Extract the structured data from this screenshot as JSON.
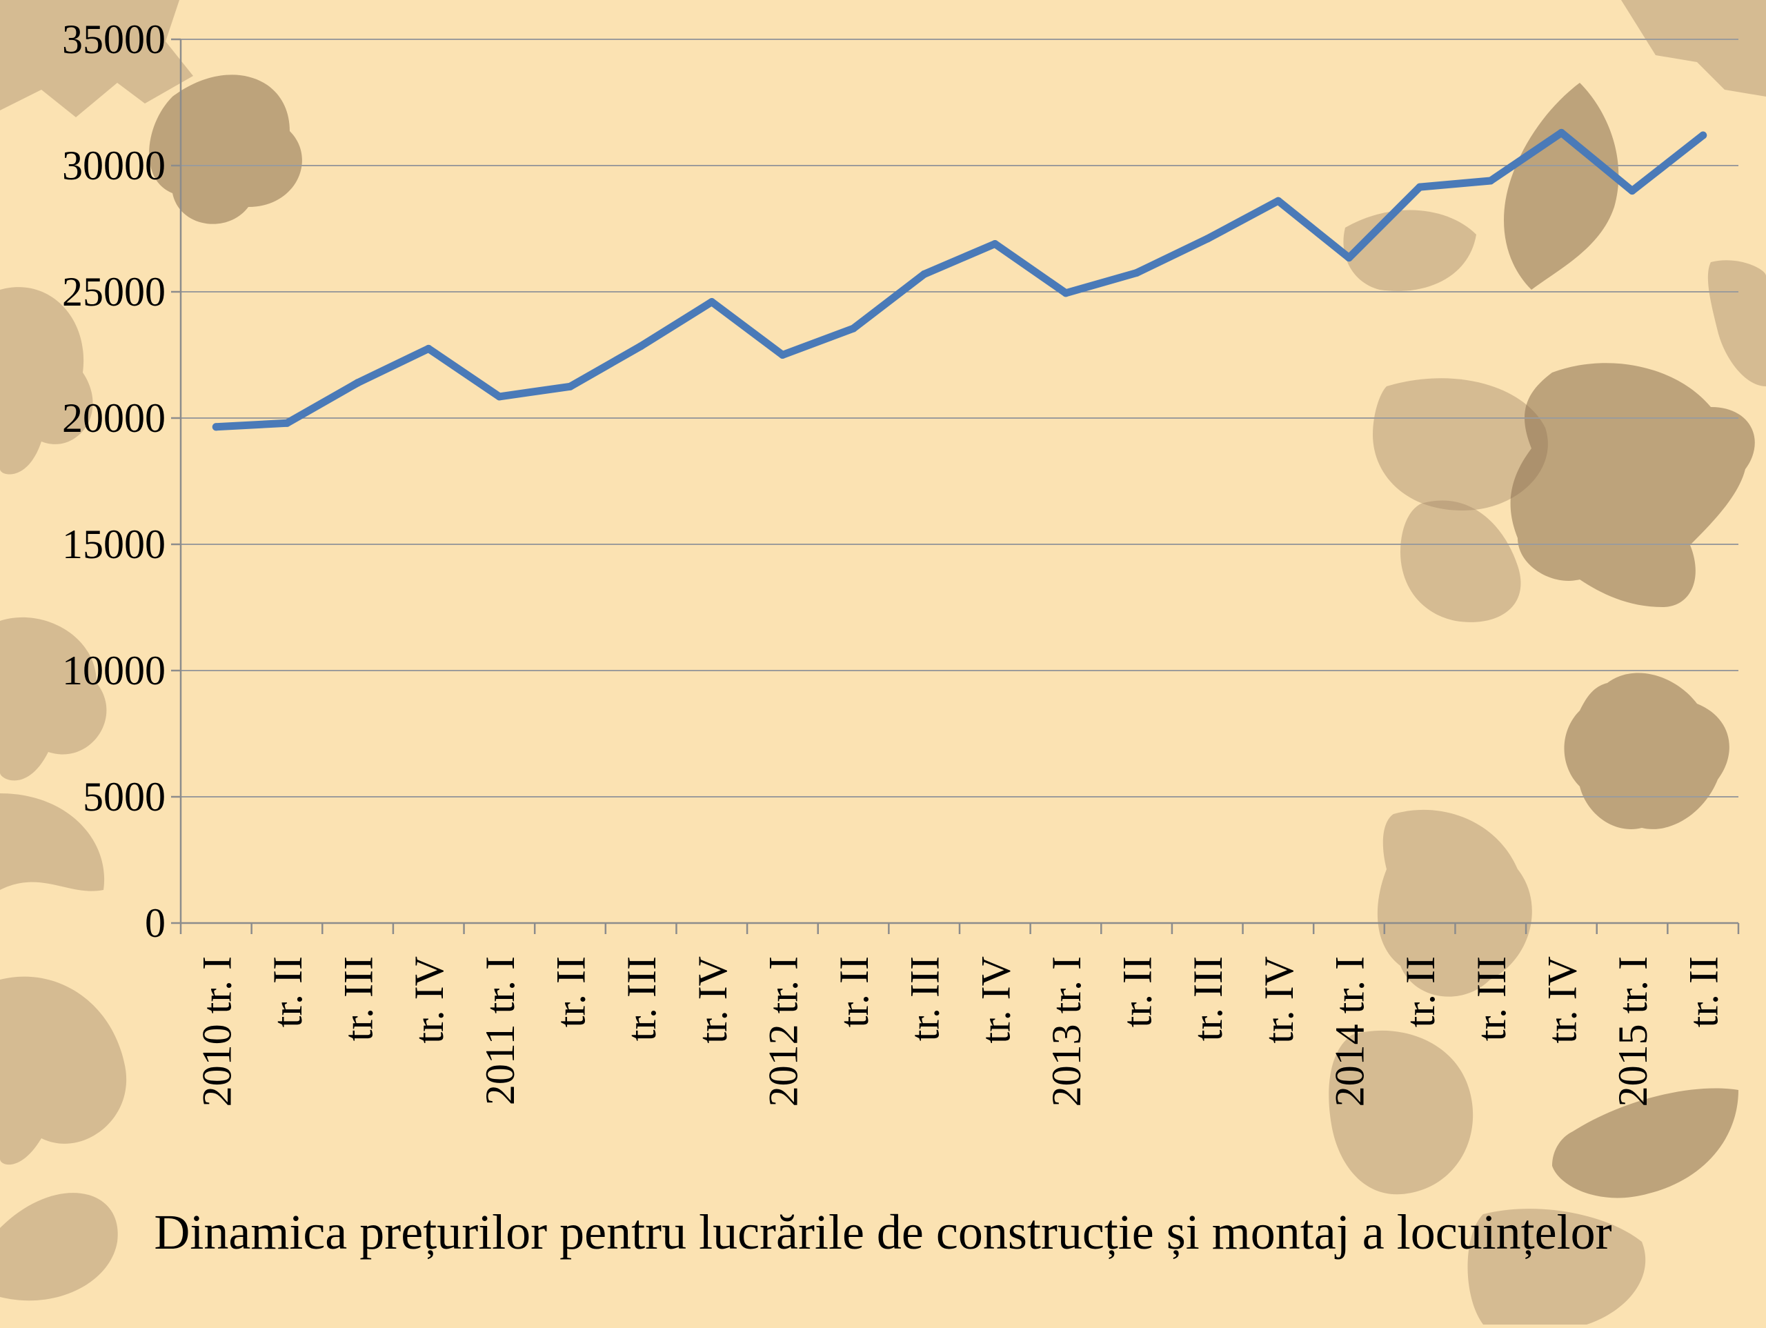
{
  "chart_data": {
    "type": "line",
    "title": "Dinamica prețurilor pentru lucrările de construcție și montaj a locuințelor",
    "xlabel": "",
    "ylabel": "",
    "ylim": [
      0,
      35000
    ],
    "yticks": [
      "0",
      "5000",
      "10000",
      "15000",
      "20000",
      "25000",
      "30000",
      "35000"
    ],
    "categories": [
      "2010 tr. I",
      "tr. II",
      "tr. III",
      "tr. IV",
      "2011 tr. I",
      "tr. II",
      "tr. III",
      "tr. IV",
      "2012 tr. I",
      "tr. II",
      "tr. III",
      "tr. IV",
      "2013 tr. I",
      "tr. II",
      "tr. III",
      "tr. IV",
      "2014 tr. I",
      "tr. II",
      "tr. III",
      "tr. IV",
      "2015 tr. I",
      "tr. II"
    ],
    "series": [
      {
        "color": "#4a7ab8",
        "values": [
          19650,
          19800,
          21400,
          22750,
          20850,
          21250,
          22850,
          24600,
          22500,
          23550,
          25700,
          26900,
          24950,
          25750,
          27100,
          28600,
          26350,
          29150,
          29400,
          31300,
          29000,
          31200
        ]
      }
    ],
    "grid": true,
    "legend": "none"
  }
}
